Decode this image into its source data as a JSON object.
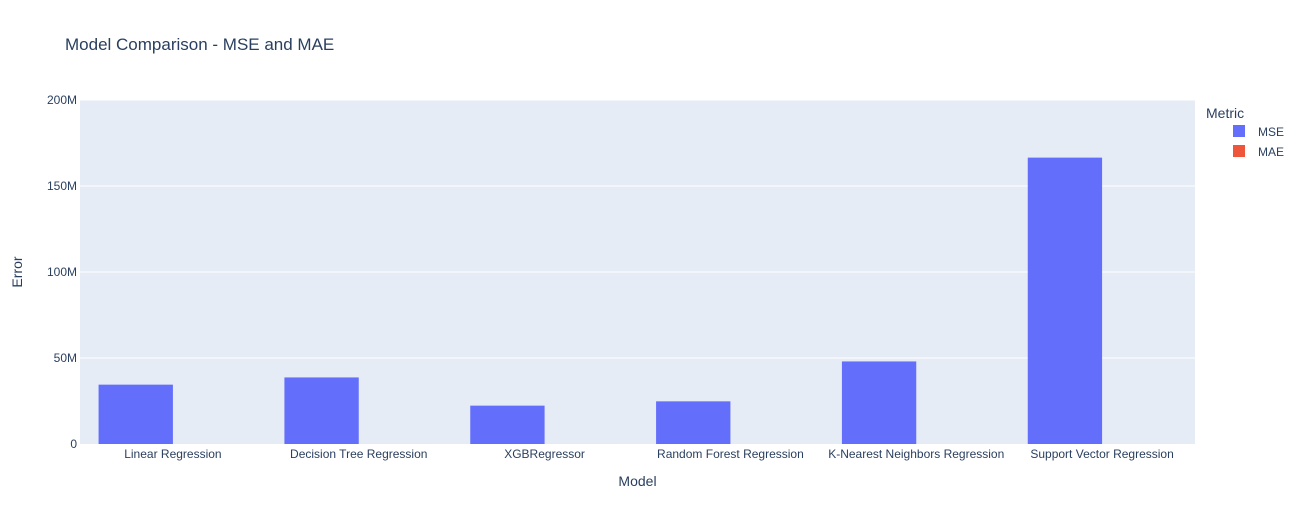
{
  "chart_data": {
    "type": "bar",
    "barmode": "group",
    "title": "Model Comparison - MSE and MAE",
    "xlabel": "Model",
    "ylabel": "Error",
    "categories": [
      "Linear Regression",
      "Decision Tree Regression",
      "XGBRegressor",
      "Random Forest Regression",
      "K-Nearest Neighbors Regression",
      "Support Vector Regression"
    ],
    "series": [
      {
        "name": "MSE",
        "color": "#636efa",
        "values": [
          34500000,
          38700000,
          22300000,
          24800000,
          48000000,
          166500000
        ]
      },
      {
        "name": "MAE",
        "color": "#ef553b",
        "values": [
          3800,
          3900,
          2900,
          3100,
          4600,
          8800
        ]
      }
    ],
    "ylim": [
      0,
      200000000
    ],
    "yticks": [
      {
        "value": 0,
        "label": "0"
      },
      {
        "value": 50000000,
        "label": "50M"
      },
      {
        "value": 100000000,
        "label": "100M"
      },
      {
        "value": 150000000,
        "label": "150M"
      },
      {
        "value": 200000000,
        "label": "200M"
      }
    ],
    "grid": true,
    "legend": {
      "title": "Metric",
      "position": "top-right"
    },
    "colors": {
      "plot_background": "#e5ecf6",
      "grid": "#ffffff",
      "text": "#2a3f5f"
    }
  }
}
